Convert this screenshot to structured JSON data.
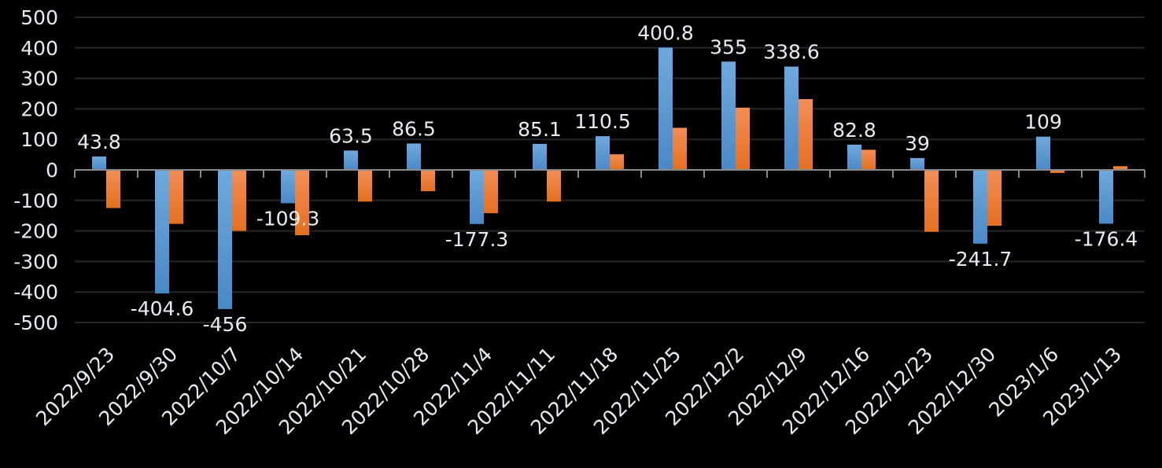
{
  "chart_data": {
    "type": "bar",
    "title": "",
    "xlabel": "",
    "ylabel": "",
    "ylim": [
      -500,
      500
    ],
    "yticks": [
      500,
      400,
      300,
      200,
      100,
      0,
      -100,
      -200,
      -300,
      -400,
      -500
    ],
    "grid": true,
    "legend": "none",
    "categories": [
      "2022/9/23",
      "2022/9/30",
      "2022/10/7",
      "2022/10/14",
      "2022/10/21",
      "2022/10/28",
      "2022/11/4",
      "2022/11/11",
      "2022/11/18",
      "2022/11/25",
      "2022/12/2",
      "2022/12/9",
      "2022/12/16",
      "2022/12/23",
      "2022/12/30",
      "2023/1/6",
      "2023/1/13"
    ],
    "series": [
      {
        "color": "#5b9bd5",
        "data_labels": true,
        "values": [
          43.8,
          -404.6,
          -456,
          -109.3,
          63.5,
          86.5,
          -177.3,
          85.1,
          110.5,
          400.8,
          355,
          338.6,
          82.8,
          39,
          -241.7,
          109,
          -176.4
        ]
      },
      {
        "color": "#ed7d31",
        "data_labels": false,
        "values": [
          -125,
          -177,
          -200,
          -214,
          -104,
          -70,
          -142,
          -104,
          51,
          138,
          204,
          232,
          66,
          -203,
          -183,
          -10,
          12
        ]
      }
    ]
  }
}
